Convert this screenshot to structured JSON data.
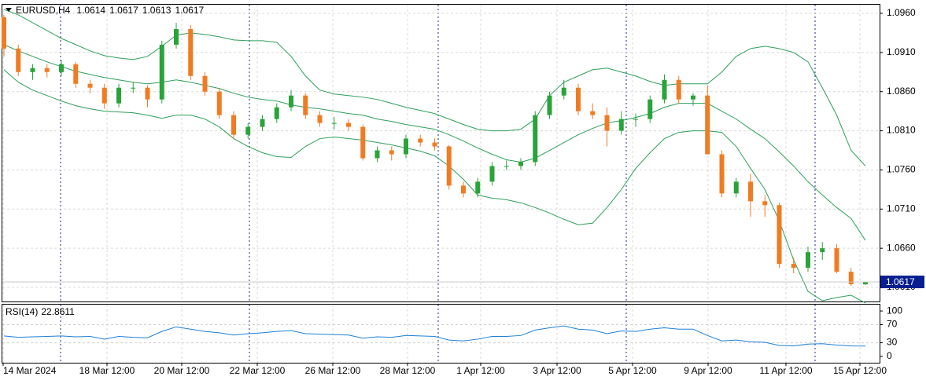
{
  "chart_data": [
    {
      "type": "candlestick",
      "title": "EURUSD,H4",
      "open": [
        1.0955,
        1.0915,
        1.0885,
        1.089,
        1.0885,
        1.0895,
        1.087,
        1.0865,
        1.0845,
        1.0865,
        1.0865,
        1.085,
        1.092,
        1.094,
        1.088,
        1.086,
        1.083,
        1.0805,
        1.0815,
        1.0825,
        1.084,
        1.0855,
        1.083,
        1.082,
        1.082,
        1.0815,
        1.0775,
        1.0785,
        1.078,
        1.08,
        1.0795,
        1.079,
        1.074,
        1.073,
        1.0745,
        1.0765,
        1.0765,
        1.077,
        1.083,
        1.0855,
        1.0865,
        1.0835,
        1.083,
        1.081,
        1.0825,
        1.0825,
        1.085,
        1.0875,
        1.085,
        1.0855,
        1.078,
        1.073,
        1.0745,
        1.072,
        1.0715,
        1.064,
        1.0635,
        1.0655,
        1.066,
        1.063,
        1.0614
      ],
      "high": [
        1.0958,
        1.092,
        1.0895,
        1.0895,
        1.09,
        1.0898,
        1.0875,
        1.087,
        1.087,
        1.0872,
        1.0868,
        1.0925,
        1.0948,
        1.0945,
        1.0885,
        1.0865,
        1.0835,
        1.082,
        1.083,
        1.0845,
        1.0862,
        1.0858,
        1.0835,
        1.0828,
        1.0825,
        1.0818,
        1.079,
        1.079,
        1.0805,
        1.0805,
        1.08,
        1.0792,
        1.0745,
        1.075,
        1.077,
        1.0772,
        1.0775,
        1.0835,
        1.086,
        1.0875,
        1.087,
        1.0845,
        1.084,
        1.0835,
        1.0832,
        1.0855,
        1.0882,
        1.088,
        1.0858,
        1.0868,
        1.0785,
        1.075,
        1.0755,
        1.0728,
        1.0718,
        1.0648,
        1.0662,
        1.0668,
        1.0665,
        1.0635,
        1.0617
      ],
      "low": [
        1.0905,
        1.088,
        1.0875,
        1.0878,
        1.088,
        1.0865,
        1.0858,
        1.0838,
        1.084,
        1.0858,
        1.084,
        1.0845,
        1.0915,
        1.0875,
        1.0855,
        1.0825,
        1.08,
        1.08,
        1.081,
        1.082,
        1.0835,
        1.0825,
        1.0815,
        1.0812,
        1.081,
        1.0772,
        1.077,
        1.0772,
        1.0775,
        1.079,
        1.0785,
        1.0735,
        1.0725,
        1.0725,
        1.074,
        1.076,
        1.076,
        1.0765,
        1.0825,
        1.085,
        1.083,
        1.0825,
        1.079,
        1.0805,
        1.0815,
        1.082,
        1.0845,
        1.0845,
        1.0842,
        1.078,
        1.0725,
        1.0725,
        1.07,
        1.07,
        1.0635,
        1.0628,
        1.063,
        1.0645,
        1.0628,
        1.0612,
        1.0613
      ],
      "close": [
        1.0915,
        1.0885,
        1.089,
        1.0885,
        1.0895,
        1.087,
        1.0865,
        1.0845,
        1.0865,
        1.0865,
        1.085,
        1.092,
        1.094,
        1.088,
        1.086,
        1.083,
        1.0805,
        1.0815,
        1.0825,
        1.084,
        1.0855,
        1.083,
        1.082,
        1.082,
        1.0815,
        1.0775,
        1.0785,
        1.078,
        1.08,
        1.0795,
        1.079,
        1.074,
        1.073,
        1.0745,
        1.0765,
        1.0765,
        1.077,
        1.083,
        1.0855,
        1.0865,
        1.0835,
        1.083,
        1.081,
        1.0825,
        1.0825,
        1.085,
        1.0875,
        1.085,
        1.0855,
        1.078,
        1.073,
        1.0745,
        1.072,
        1.0715,
        1.064,
        1.0635,
        1.0655,
        1.066,
        1.063,
        1.0614,
        1.0617
      ],
      "bb_upper": [
        1.0965,
        1.0958,
        1.0948,
        1.0938,
        1.0928,
        1.092,
        1.0912,
        1.0906,
        1.0903,
        1.0901,
        1.0905,
        1.0918,
        1.0932,
        1.0935,
        1.0933,
        1.093,
        1.0926,
        1.0925,
        1.0925,
        1.0923,
        1.0905,
        1.088,
        1.0862,
        1.0857,
        1.0855,
        1.0853,
        1.085,
        1.0845,
        1.084,
        1.0836,
        1.0832,
        1.0825,
        1.0818,
        1.0812,
        1.081,
        1.081,
        1.0812,
        1.0825,
        1.0855,
        1.0872,
        1.088,
        1.0888,
        1.089,
        1.0885,
        1.088,
        1.0873,
        1.0868,
        1.087,
        1.087,
        1.087,
        1.0885,
        1.0905,
        1.0915,
        1.0918,
        1.0915,
        1.091,
        1.0898,
        1.0865,
        1.083,
        1.0785,
        1.0765
      ],
      "bb_middle": [
        1.092,
        1.0912,
        1.0905,
        1.0898,
        1.0892,
        1.0886,
        1.0882,
        1.0878,
        1.0875,
        1.0872,
        1.087,
        1.0872,
        1.0875,
        1.0872,
        1.0868,
        1.0864,
        1.0858,
        1.0853,
        1.085,
        1.0848,
        1.0843,
        1.084,
        1.0838,
        1.0835,
        1.0832,
        1.083,
        1.0825,
        1.0822,
        1.0818,
        1.0815,
        1.0812,
        1.0805,
        1.0797,
        1.0788,
        1.078,
        1.0773,
        1.077,
        1.0775,
        1.0785,
        1.0795,
        1.0805,
        1.0813,
        1.082,
        1.0823,
        1.0827,
        1.0832,
        1.084,
        1.0845,
        1.0845,
        1.0845,
        1.0835,
        1.0825,
        1.0812,
        1.08,
        1.0783,
        1.0765,
        1.0745,
        1.0728,
        1.0712,
        1.0698,
        1.067
      ],
      "bb_lower": [
        1.0888,
        1.0872,
        1.0862,
        1.0855,
        1.0848,
        1.0842,
        1.0838,
        1.0835,
        1.0834,
        1.0833,
        1.083,
        1.0826,
        1.083,
        1.083,
        1.0825,
        1.0815,
        1.08,
        1.079,
        1.0782,
        1.0777,
        1.0776,
        1.079,
        1.08,
        1.0802,
        1.08,
        1.0798,
        1.0795,
        1.0792,
        1.0788,
        1.0784,
        1.0778,
        1.0765,
        1.0748,
        1.0728,
        1.0724,
        1.0722,
        1.0718,
        1.0712,
        1.0705,
        1.0697,
        1.069,
        1.0692,
        1.0712,
        1.0735,
        1.0762,
        1.0782,
        1.08,
        1.0808,
        1.081,
        1.081,
        1.0808,
        1.079,
        1.0762,
        1.0735,
        1.0695,
        1.0645,
        1.0605,
        1.0593,
        1.0597,
        1.06,
        1.059
      ],
      "up_color": "#2aa33a",
      "down_color": "#f07b22",
      "band_color": "#2e9e5b",
      "ylim": [
        1.0592,
        1.0971
      ],
      "yticks": [
        {
          "value": 1.096,
          "label": "1.0960"
        },
        {
          "value": 1.091,
          "label": "1.0910"
        },
        {
          "value": 1.086,
          "label": "1.0860"
        },
        {
          "value": 1.081,
          "label": "1.0810"
        },
        {
          "value": 1.076,
          "label": "1.0760"
        },
        {
          "value": 1.071,
          "label": "1.0710"
        },
        {
          "value": 1.066,
          "label": "1.0660"
        },
        {
          "value": 1.061,
          "label": "1.0610"
        }
      ],
      "grid": true,
      "x_labels": [
        "14 Mar 2024",
        "18 Mar 12:00",
        "20 Mar 12:00",
        "22 Mar 12:00",
        "26 Mar 12:00",
        "28 Mar 12:00",
        "1 Apr 12:00",
        "3 Apr 12:00",
        "5 Apr 12:00",
        "9 Apr 12:00",
        "11 Apr 12:00",
        "15 Apr 12:00"
      ]
    },
    {
      "type": "line",
      "title": "RSI(14)",
      "color": "#1e7fd6",
      "values": [
        45,
        42,
        43,
        44,
        45,
        43,
        44,
        38,
        44,
        42,
        41,
        55,
        65,
        60,
        55,
        52,
        47,
        50,
        52,
        55,
        57,
        50,
        49,
        48,
        47,
        40,
        43,
        42,
        46,
        45,
        44,
        36,
        34,
        38,
        44,
        44,
        46,
        58,
        63,
        67,
        60,
        58,
        50,
        56,
        55,
        60,
        63,
        60,
        60,
        46,
        34,
        36,
        32,
        31,
        24,
        23,
        27,
        28,
        25,
        23,
        22.8611
      ],
      "ylim": [
        -14,
        114
      ],
      "yticks": [
        100,
        70,
        30,
        0
      ]
    }
  ]
}
